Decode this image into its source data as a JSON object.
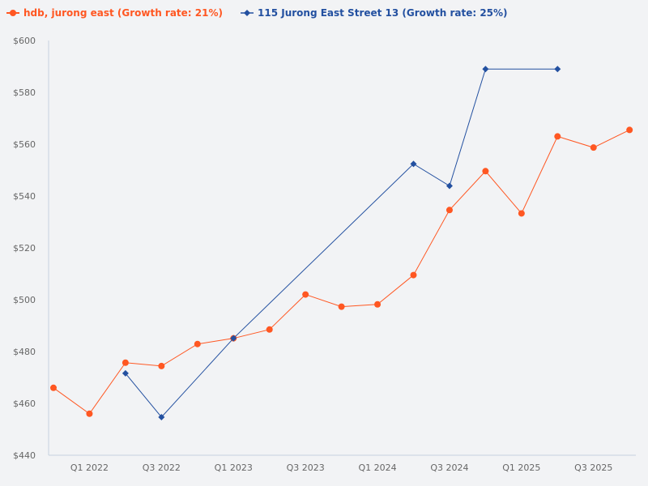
{
  "chart_data": {
    "type": "line",
    "title": "",
    "xlabel": "",
    "ylabel": "",
    "ylim": [
      440,
      600
    ],
    "y_ticks": [
      "$440",
      "$460",
      "$480",
      "$500",
      "$520",
      "$540",
      "$560",
      "$580",
      "$600"
    ],
    "y_tick_values": [
      440,
      460,
      480,
      500,
      520,
      540,
      560,
      580,
      600
    ],
    "categories": [
      "Q4 2021",
      "Q1 2022",
      "Q2 2022",
      "Q3 2022",
      "Q4 2022",
      "Q1 2023",
      "Q2 2023",
      "Q3 2023",
      "Q4 2023",
      "Q1 2024",
      "Q2 2024",
      "Q3 2024",
      "Q4 2024",
      "Q1 2025",
      "Q2 2025",
      "Q3 2025",
      "Q4 2025"
    ],
    "x_tick_labels": [
      "Q1 2022",
      "Q3 2022",
      "Q1 2023",
      "Q3 2023",
      "Q1 2024",
      "Q3 2024",
      "Q1 2025",
      "Q3 2025"
    ],
    "grid": false,
    "legend_position": "top-left",
    "series": [
      {
        "name": "hdb, jurong east (Growth rate: 21%)",
        "color": "#ff5722",
        "marker": "circle",
        "values": [
          466.0,
          456.0,
          475.7,
          474.4,
          482.9,
          485.1,
          488.5,
          502.0,
          497.3,
          498.2,
          509.5,
          534.6,
          549.6,
          533.3,
          563.0,
          558.7,
          565.5
        ]
      },
      {
        "name": "115 Jurong East Street 13 (Growth rate: 25%)",
        "color": "#2350a0",
        "marker": "diamond",
        "values": [
          null,
          null,
          471.6,
          454.7,
          null,
          485.1,
          null,
          null,
          null,
          null,
          552.4,
          543.9,
          589.0,
          null,
          589.0,
          null,
          null
        ]
      }
    ]
  }
}
